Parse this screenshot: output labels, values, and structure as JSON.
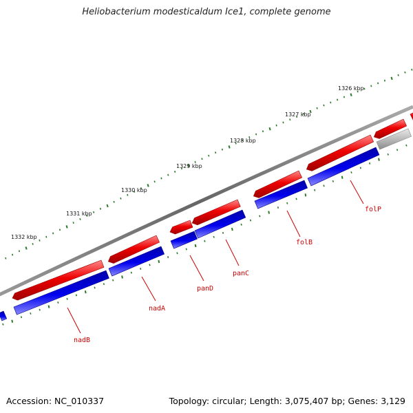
{
  "title": "Heliobacterium modesticaldum Ice1, complete genome",
  "accession_text": "Accession: NC_010337",
  "summary_text": "Topology: circular; Length: 3,075,407 bp; Genes: 3,129",
  "colors": {
    "forward": "#ee0000",
    "reverse": "#0000dd",
    "other": "#b8b8b8",
    "backbone": "#777777",
    "ticks": "#2a7a2a",
    "label": "#cc0000"
  },
  "scale_labels": [
    "1326 kbp",
    "1327 kbp",
    "1328 kbp",
    "1329 kbp",
    "1330 kbp",
    "1331 kbp",
    "1332 kbp"
  ],
  "gene_labels": [
    "folP",
    "folB",
    "panC",
    "panD",
    "nadA",
    "nadB"
  ]
}
